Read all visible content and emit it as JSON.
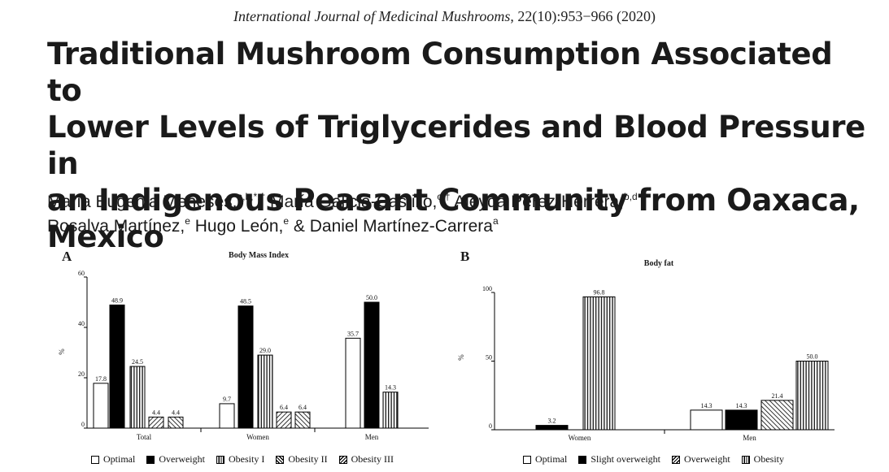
{
  "header": {
    "journal_name": "International Journal of Medicinal Mushrooms",
    "journal_ref": ", 22(10):953−966 (2020)"
  },
  "title_lines": [
    "Traditional Mushroom Consumption Associated to",
    "Lower Levels of Triglycerides and Blood Pressure in",
    "an Indigenous Peasant Community from Oaxaca,",
    "Mexico"
  ],
  "authors": [
    {
      "name": "María Eugenia Meneses,",
      "sup": "a,b,*,†"
    },
    {
      "name": " María Galicia-Castillo,",
      "sup": "c,†"
    },
    {
      "name": " Aleyda Pérez-Herrera,",
      "sup": "b,d"
    },
    {
      "name": "Rosalva Martínez,",
      "sup": "e"
    },
    {
      "name": " Hugo León,",
      "sup": "e"
    },
    {
      "name": " & Daniel Martínez-Carrera",
      "sup": "a"
    }
  ],
  "panels": {
    "a_label": "A",
    "b_label": "B"
  },
  "chart_data": [
    {
      "type": "bar",
      "title": "Body Mass Index",
      "ylabel": "%",
      "ylim": [
        0,
        60
      ],
      "yticks": [
        0,
        20,
        40,
        60
      ],
      "categories": [
        "Total",
        "Women",
        "Men"
      ],
      "series": [
        {
          "name": "Optimal",
          "pattern": "white",
          "values": [
            17.8,
            9.7,
            35.7
          ]
        },
        {
          "name": "Overweight",
          "pattern": "black",
          "values": [
            48.9,
            48.5,
            50.0
          ]
        },
        {
          "name": "Obesity I",
          "pattern": "vertical",
          "values": [
            24.5,
            29.0,
            14.3
          ]
        },
        {
          "name": "Obesity II",
          "pattern": "diag-down",
          "values": [
            4.4,
            6.4,
            null
          ]
        },
        {
          "name": "Obesity III",
          "pattern": "diag-up",
          "values": [
            4.4,
            6.4,
            null
          ]
        }
      ],
      "value_labels": [
        [
          "17.8",
          "9.7",
          "35.7"
        ],
        [
          "48.9",
          "48.5",
          "50.0"
        ],
        [
          "24.5",
          "29.0",
          "14.3"
        ],
        [
          "4.4",
          "6.4",
          ""
        ],
        [
          "4.4",
          "6.4",
          ""
        ]
      ],
      "legend_position": "bottom",
      "grid": false
    },
    {
      "type": "bar",
      "title": "Body fat",
      "ylabel": "%",
      "ylim": [
        0,
        100
      ],
      "yticks": [
        0,
        50,
        100
      ],
      "categories": [
        "Women",
        "Men"
      ],
      "series": [
        {
          "name": "Optimal",
          "pattern": "white",
          "values": [
            null,
            14.3
          ]
        },
        {
          "name": "Slight overweight",
          "pattern": "black",
          "values": [
            3.2,
            14.3
          ]
        },
        {
          "name": "Overweight",
          "pattern": "diag-up",
          "values": [
            null,
            21.4
          ]
        },
        {
          "name": "Obesity",
          "pattern": "vertical",
          "values": [
            96.8,
            50.0
          ]
        }
      ],
      "value_labels": [
        [
          "",
          "14.3"
        ],
        [
          "3.2",
          "14.3"
        ],
        [
          "",
          "21.4"
        ],
        [
          "96.8",
          "50.0"
        ]
      ],
      "legend_position": "bottom",
      "grid": false
    }
  ]
}
